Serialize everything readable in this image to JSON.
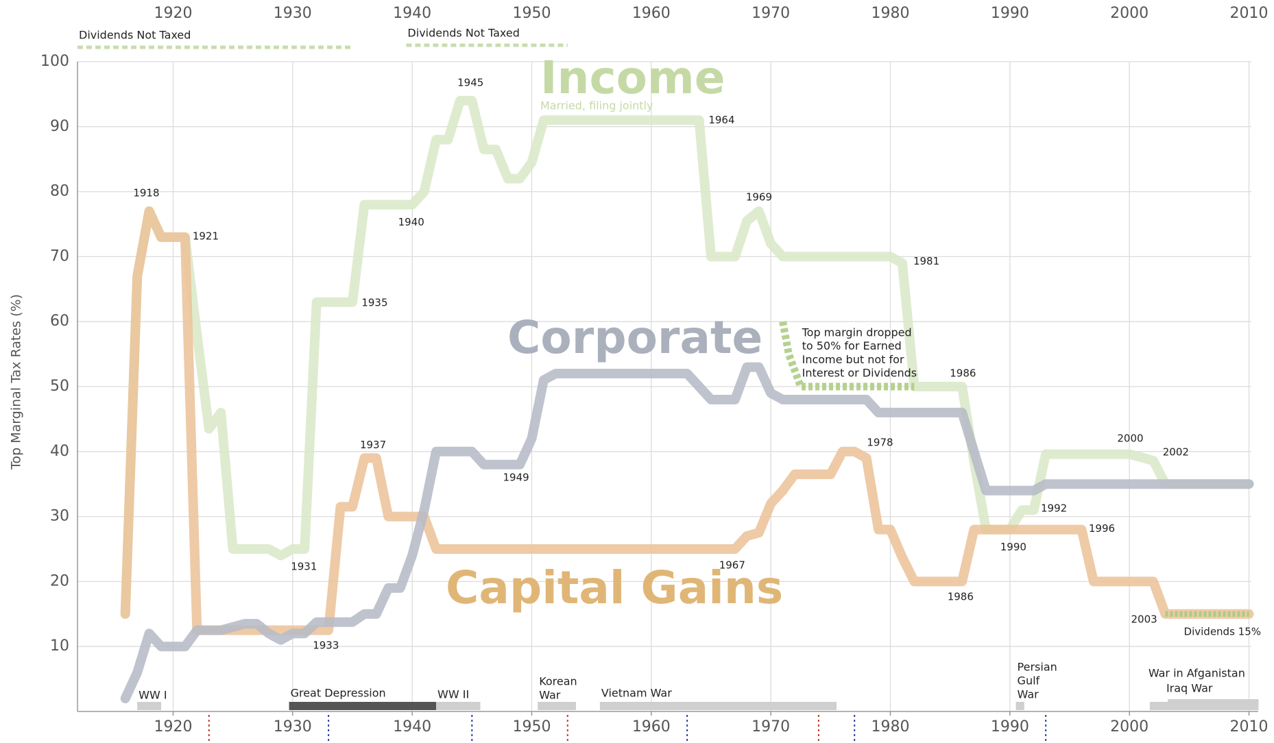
{
  "chart_data": {
    "type": "line",
    "y_label": "Top Marginal Tax Rates (%)",
    "xlim": [
      1912,
      2010.2
    ],
    "xticks": [
      1920,
      1930,
      1940,
      1950,
      1960,
      1970,
      1980,
      1990,
      2000,
      2010
    ],
    "ylim": [
      0,
      100
    ],
    "yticks": [
      10,
      20,
      30,
      40,
      50,
      60,
      70,
      80,
      90,
      100
    ],
    "grid": true,
    "x": [
      1916,
      1917,
      1918,
      1919,
      1920,
      1921,
      1922,
      1923,
      1924,
      1925,
      1926,
      1927,
      1928,
      1929,
      1930,
      1931,
      1932,
      1933,
      1934,
      1935,
      1936,
      1937,
      1938,
      1939,
      1940,
      1941,
      1942,
      1943,
      1944,
      1945,
      1946,
      1947,
      1948,
      1949,
      1950,
      1951,
      1952,
      1953,
      1954,
      1955,
      1956,
      1957,
      1958,
      1959,
      1960,
      1961,
      1962,
      1963,
      1964,
      1965,
      1966,
      1967,
      1968,
      1969,
      1970,
      1971,
      1972,
      1973,
      1974,
      1975,
      1976,
      1977,
      1978,
      1979,
      1980,
      1981,
      1982,
      1983,
      1984,
      1985,
      1986,
      1987,
      1988,
      1989,
      1990,
      1991,
      1992,
      1993,
      1994,
      1995,
      1996,
      1997,
      1998,
      1999,
      2000,
      2001,
      2002,
      2003,
      2004,
      2005,
      2006,
      2007,
      2008,
      2009,
      2010
    ],
    "series": [
      {
        "name": "Income",
        "note": "Married, filing jointly",
        "color": "#dbe8c8",
        "label_color": "#c5d9a6",
        "values": [
          15,
          67,
          77,
          73,
          73,
          73,
          58,
          43.5,
          46,
          25,
          25,
          25,
          25,
          24,
          25,
          25,
          63,
          63,
          63,
          63,
          78,
          78,
          78,
          78,
          78,
          80,
          88,
          88,
          94,
          94,
          86.5,
          86.5,
          82,
          82,
          84.5,
          91,
          91,
          91,
          91,
          91,
          91,
          91,
          91,
          91,
          91,
          91,
          91,
          91,
          91,
          70,
          70,
          70,
          75.5,
          77,
          72,
          70,
          70,
          70,
          70,
          70,
          70,
          70,
          70,
          70,
          70,
          69,
          50,
          50,
          50,
          50,
          50,
          38.5,
          28,
          28,
          28,
          31,
          31,
          39.6,
          39.6,
          39.6,
          39.6,
          39.6,
          39.6,
          39.6,
          39.6,
          39.1,
          38.6,
          35,
          35,
          35,
          35,
          35,
          35,
          35,
          35
        ]
      },
      {
        "name": "Capital Gains",
        "color": "#ecc39a",
        "label_color": "#e0b677",
        "values": [
          15,
          67,
          77,
          73,
          73,
          73,
          12.5,
          12.5,
          12.5,
          12.5,
          12.5,
          12.5,
          12.5,
          12.5,
          12.5,
          12.5,
          12.5,
          12.5,
          31.5,
          31.5,
          39,
          39,
          30,
          30,
          30,
          30,
          25,
          25,
          25,
          25,
          25,
          25,
          25,
          25,
          25,
          25,
          25,
          25,
          25,
          25,
          25,
          25,
          25,
          25,
          25,
          25,
          25,
          25,
          25,
          25,
          25,
          25,
          27,
          27.5,
          32,
          34,
          36.5,
          36.5,
          36.5,
          36.5,
          40,
          40,
          39,
          28,
          28,
          23.7,
          20,
          20,
          20,
          20,
          20,
          28,
          28,
          28,
          28,
          28,
          28,
          28,
          28,
          28,
          28,
          20,
          20,
          20,
          20,
          20,
          20,
          15,
          15,
          15,
          15,
          15,
          15,
          15,
          15
        ]
      },
      {
        "name": "Corporate",
        "color": "#b6bbc6",
        "label_color": "#aab0bc",
        "values": [
          2,
          6,
          12,
          10,
          10,
          10,
          12.5,
          12.5,
          12.5,
          13,
          13.5,
          13.5,
          12,
          11,
          12,
          12,
          13.75,
          13.75,
          13.75,
          13.75,
          15,
          15,
          19,
          19,
          24,
          31,
          40,
          40,
          40,
          40,
          38,
          38,
          38,
          38,
          42,
          51,
          52,
          52,
          52,
          52,
          52,
          52,
          52,
          52,
          52,
          52,
          52,
          52,
          50,
          48,
          48,
          48,
          53,
          53,
          49,
          48,
          48,
          48,
          48,
          48,
          48,
          48,
          48,
          46,
          46,
          46,
          46,
          46,
          46,
          46,
          46,
          40,
          34,
          34,
          34,
          34,
          34,
          35,
          35,
          35,
          35,
          35,
          35,
          35,
          35,
          35,
          35,
          35,
          35,
          35,
          35,
          35,
          35,
          35,
          35
        ]
      }
    ],
    "highlights": [
      {
        "color": "#b5d18f",
        "x": [
          1971,
          1971.5,
          1972.5,
          1982
        ],
        "values": [
          60,
          55,
          50,
          50
        ]
      },
      {
        "color": "#a9cc86",
        "x": [
          2003,
          2010
        ],
        "values": [
          15,
          15
        ]
      }
    ],
    "annotations": [
      "1918",
      "1921",
      "1935",
      "1940",
      "1945",
      "1964",
      "1969",
      "1981",
      "1986",
      "2000",
      "2002",
      "1931",
      "1933",
      "1937",
      "1949",
      "1967",
      "1978",
      "1986",
      "1990",
      "1992",
      "1996",
      "2003",
      "Dividends 15%"
    ],
    "note": [
      "Top margin dropped",
      "to 50% for Earned",
      "Income but not for",
      "Interest or Dividends"
    ],
    "untaxed": [
      {
        "name": "Dividends Not Taxed",
        "start": 1912,
        "end": 1935
      },
      {
        "name": "Dividends Not Taxed",
        "start": 1939.5,
        "end": 1953
      }
    ],
    "periods": [
      {
        "label": [
          "WW I"
        ],
        "start": 1917,
        "end": 1919,
        "color": "#cfcfcf"
      },
      {
        "label": [
          "Great Depression"
        ],
        "start": 1929.7,
        "end": 1942,
        "color": "#555555"
      },
      {
        "label": [
          "WW II"
        ],
        "start": 1942,
        "end": 1945.7,
        "color": "#cfcfcf"
      },
      {
        "label": [
          "Korean",
          "War"
        ],
        "start": 1950.5,
        "end": 1953.7,
        "color": "#cfcfcf"
      },
      {
        "label": [
          "Vietnam War"
        ],
        "start": 1955.7,
        "end": 1975.5,
        "color": "#cfcfcf"
      },
      {
        "label": [
          "Persian",
          "Gulf",
          "War"
        ],
        "start": 1990.5,
        "end": 1991.2,
        "color": "#cfcfcf"
      },
      {
        "label": [
          "War in Afganistan"
        ],
        "start": 2001.7,
        "end": 2010.8,
        "color": "#cfcfcf"
      },
      {
        "label": [
          "Iraq War"
        ],
        "start": 2003.2,
        "end": 2010.8,
        "color": "#cfcfcf"
      }
    ],
    "dividers": [
      {
        "x": 1923,
        "color": "#c0392b"
      },
      {
        "x": 1953,
        "color": "#c0392b"
      },
      {
        "x": 1974,
        "color": "#c0392b"
      },
      {
        "x": 1933,
        "color": "#2c3e9a"
      },
      {
        "x": 1945,
        "color": "#2c3e9a"
      },
      {
        "x": 1963,
        "color": "#2c3e9a"
      },
      {
        "x": 1977,
        "color": "#2c3e9a"
      },
      {
        "x": 1993,
        "color": "#2c3e9a"
      }
    ]
  }
}
